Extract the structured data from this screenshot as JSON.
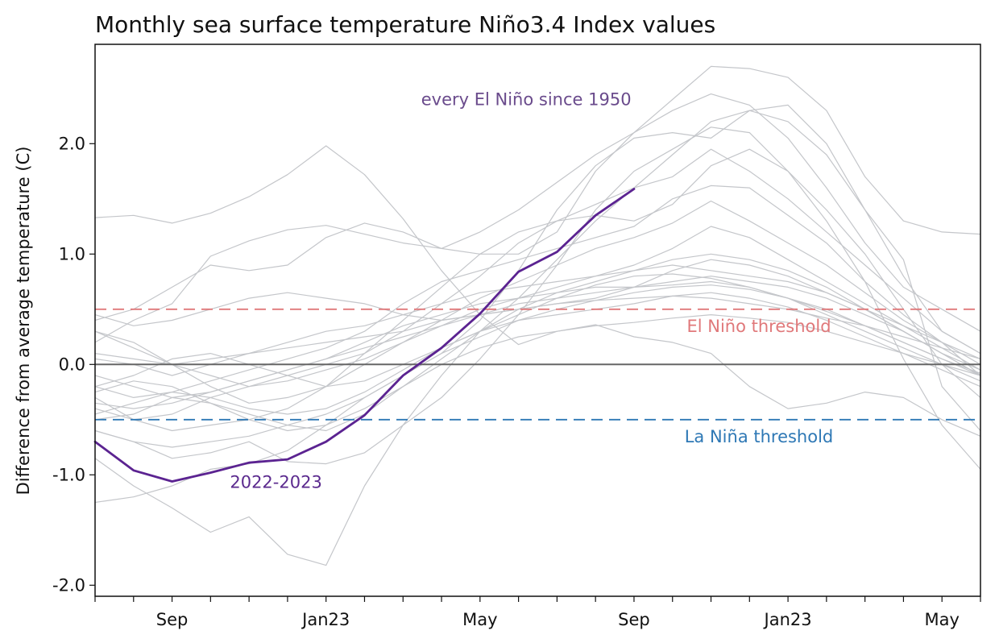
{
  "chart_data": {
    "type": "line",
    "title": "Monthly sea surface temperature Niño3.4 Index values",
    "xlabel": "",
    "ylabel": "Difference from average temperature (C)",
    "xlim": [
      0,
      23
    ],
    "ylim": [
      -2.1,
      2.9
    ],
    "x_ticks": [
      {
        "x": 2,
        "label": "Sep"
      },
      {
        "x": 6,
        "label": "Jan23"
      },
      {
        "x": 10,
        "label": "May"
      },
      {
        "x": 14,
        "label": "Sep"
      },
      {
        "x": 18,
        "label": "Jan23"
      },
      {
        "x": 22,
        "label": "May"
      }
    ],
    "y_ticks": [
      {
        "y": 2.0,
        "label": "2.0"
      },
      {
        "y": 1.0,
        "label": "1.0"
      },
      {
        "y": 0.0,
        "label": "0.0"
      },
      {
        "y": -1.0,
        "label": "-1.0"
      },
      {
        "y": -2.0,
        "label": "-2.0"
      }
    ],
    "grid": false,
    "reference_lines": [
      {
        "y": 0.0,
        "color": "#666666",
        "style": "solid"
      },
      {
        "y": 0.5,
        "color": "#e0787a",
        "style": "dashed",
        "label": "El Niño threshold"
      },
      {
        "y": -0.5,
        "color": "#2e78b5",
        "style": "dashed",
        "label": "La Niña threshold"
      }
    ],
    "annotations": [
      {
        "text": "every El Niño since 1950",
        "color": "#6a4b8c",
        "x": 11.2,
        "y": 2.35
      },
      {
        "text": "2022-2023",
        "color": "#5b2a8e",
        "x": 4.7,
        "y": -1.12
      }
    ],
    "highlight": {
      "color": "#5b2391",
      "label": "2022-2023",
      "x": [
        0,
        1,
        2,
        3,
        4,
        5,
        6,
        7,
        8,
        9,
        10,
        11,
        12,
        13,
        14
      ],
      "y": [
        -0.7,
        -0.96,
        -1.06,
        -0.98,
        -0.89,
        -0.86,
        -0.7,
        -0.46,
        -0.1,
        0.15,
        0.46,
        0.84,
        1.02,
        1.35,
        1.59
      ]
    },
    "background_color": "#c4c6ca",
    "background_series": [
      {
        "y": [
          1.33,
          1.35,
          1.28,
          1.37,
          1.52,
          1.72,
          1.98,
          1.72,
          1.32,
          0.85,
          0.45,
          0.18,
          0.3,
          0.36,
          0.25,
          0.2,
          0.1,
          -0.2,
          -0.4,
          -0.35,
          -0.25,
          -0.3,
          -0.5,
          -0.65
        ]
      },
      {
        "y": [
          0.2,
          0.4,
          0.55,
          0.98,
          1.12,
          1.22,
          1.26,
          1.18,
          1.1,
          1.05,
          1.2,
          1.4,
          1.65,
          1.9,
          2.1,
          2.4,
          2.7,
          2.68,
          2.6,
          2.3,
          1.7,
          1.3,
          1.2,
          1.18
        ]
      },
      {
        "y": [
          0.4,
          0.5,
          0.7,
          0.9,
          0.85,
          0.9,
          1.15,
          1.28,
          1.2,
          1.05,
          1.0,
          1.0,
          1.2,
          1.75,
          2.1,
          2.3,
          2.45,
          2.35,
          2.05,
          1.6,
          1.1,
          0.7,
          0.5,
          0.3
        ]
      },
      {
        "y": [
          -0.85,
          -1.1,
          -1.3,
          -1.52,
          -1.38,
          -1.72,
          -1.82,
          -1.1,
          -0.55,
          -0.1,
          0.3,
          0.6,
          0.95,
          1.3,
          1.6,
          1.9,
          2.2,
          2.3,
          2.2,
          1.9,
          1.4,
          0.8,
          0.3,
          0.1
        ]
      },
      {
        "y": [
          -1.25,
          -1.2,
          -1.1,
          -0.95,
          -0.9,
          -0.78,
          -0.55,
          -0.3,
          -0.1,
          0.1,
          0.4,
          0.85,
          1.4,
          1.8,
          2.05,
          2.1,
          2.05,
          2.3,
          2.35,
          2.0,
          1.4,
          0.95,
          -0.2,
          -0.6
        ]
      },
      {
        "y": [
          -0.6,
          -0.7,
          -0.85,
          -0.8,
          -0.7,
          -0.88,
          -0.9,
          -0.8,
          -0.55,
          -0.3,
          0.05,
          0.45,
          0.9,
          1.4,
          1.75,
          1.95,
          2.15,
          2.1,
          1.75,
          1.3,
          0.75,
          0.05,
          -0.55,
          -0.95
        ]
      },
      {
        "y": [
          0.3,
          0.2,
          0.0,
          -0.2,
          -0.35,
          -0.3,
          -0.2,
          0.1,
          0.4,
          0.7,
          1.0,
          1.2,
          1.3,
          1.35,
          1.3,
          1.45,
          1.8,
          1.95,
          1.75,
          1.4,
          1.0,
          0.5,
          0.0,
          -0.3
        ]
      },
      {
        "y": [
          -0.4,
          -0.5,
          -0.45,
          -0.3,
          -0.2,
          -0.1,
          0.0,
          0.1,
          0.3,
          0.55,
          0.8,
          1.1,
          1.3,
          1.45,
          1.6,
          1.7,
          1.95,
          1.75,
          1.5,
          1.2,
          0.9,
          0.6,
          0.3,
          0.1
        ]
      },
      {
        "y": [
          -0.2,
          -0.3,
          -0.25,
          -0.15,
          -0.05,
          0.05,
          0.15,
          0.3,
          0.55,
          0.75,
          0.85,
          0.95,
          1.05,
          1.15,
          1.25,
          1.5,
          1.62,
          1.6,
          1.35,
          1.1,
          0.75,
          0.45,
          0.2,
          -0.1
        ]
      },
      {
        "y": [
          -0.3,
          -0.5,
          -0.6,
          -0.55,
          -0.5,
          -0.4,
          -0.2,
          0.0,
          0.2,
          0.4,
          0.6,
          0.75,
          0.9,
          1.05,
          1.15,
          1.28,
          1.48,
          1.3,
          1.1,
          0.9,
          0.65,
          0.4,
          0.2,
          0.0
        ]
      },
      {
        "y": [
          0.3,
          0.15,
          0.0,
          -0.1,
          -0.2,
          -0.15,
          -0.05,
          0.05,
          0.2,
          0.35,
          0.5,
          0.6,
          0.7,
          0.8,
          0.9,
          1.05,
          1.25,
          1.15,
          0.95,
          0.75,
          0.55,
          0.35,
          0.15,
          -0.05
        ]
      },
      {
        "y": [
          -0.5,
          -0.45,
          -0.3,
          -0.35,
          -0.45,
          -0.55,
          -0.6,
          -0.45,
          -0.2,
          0.05,
          0.3,
          0.5,
          0.65,
          0.75,
          0.85,
          0.95,
          1.0,
          0.95,
          0.85,
          0.7,
          0.5,
          0.3,
          0.1,
          -0.1
        ]
      },
      {
        "y": [
          0.05,
          0.0,
          -0.1,
          0.0,
          0.1,
          0.2,
          0.3,
          0.35,
          0.45,
          0.55,
          0.65,
          0.7,
          0.75,
          0.8,
          0.85,
          0.9,
          0.85,
          0.8,
          0.75,
          0.65,
          0.5,
          0.35,
          0.2,
          0.05
        ]
      },
      {
        "y": [
          -0.35,
          -0.4,
          -0.35,
          -0.25,
          -0.15,
          -0.05,
          0.05,
          0.15,
          0.25,
          0.35,
          0.45,
          0.55,
          0.6,
          0.65,
          0.7,
          0.75,
          0.8,
          0.75,
          0.7,
          0.6,
          0.45,
          0.3,
          0.1,
          -0.05
        ]
      },
      {
        "y": [
          -0.1,
          -0.2,
          -0.3,
          -0.25,
          -0.15,
          -0.05,
          0.05,
          0.2,
          0.35,
          0.45,
          0.55,
          0.6,
          0.65,
          0.7,
          0.7,
          0.72,
          0.75,
          0.7,
          0.6,
          0.45,
          0.3,
          0.15,
          0.0,
          -0.15
        ]
      },
      {
        "y": [
          -0.6,
          -0.7,
          -0.75,
          -0.7,
          -0.65,
          -0.55,
          -0.45,
          -0.3,
          -0.1,
          0.1,
          0.25,
          0.4,
          0.5,
          0.58,
          0.65,
          0.7,
          0.72,
          0.68,
          0.6,
          0.5,
          0.35,
          0.2,
          0.05,
          -0.1
        ]
      },
      {
        "y": [
          0.1,
          0.05,
          0.0,
          0.05,
          0.1,
          0.15,
          0.2,
          0.25,
          0.3,
          0.4,
          0.45,
          0.5,
          0.55,
          0.58,
          0.6,
          0.62,
          0.6,
          0.55,
          0.5,
          0.42,
          0.35,
          0.25,
          0.15,
          0.05
        ]
      },
      {
        "y": [
          -0.45,
          -0.35,
          -0.25,
          -0.3,
          -0.4,
          -0.45,
          -0.4,
          -0.25,
          -0.05,
          0.15,
          0.3,
          0.4,
          0.45,
          0.5,
          0.55,
          0.62,
          0.65,
          0.6,
          0.52,
          0.4,
          0.25,
          0.1,
          -0.05,
          -0.2
        ]
      },
      {
        "y": [
          -0.25,
          -0.15,
          -0.2,
          -0.35,
          -0.5,
          -0.6,
          -0.55,
          -0.4,
          -0.2,
          0.0,
          0.15,
          0.25,
          0.3,
          0.35,
          0.38,
          0.42,
          0.45,
          0.42,
          0.38,
          0.3,
          0.2,
          0.1,
          0.0,
          -0.1
        ]
      },
      {
        "y": [
          0.45,
          0.35,
          0.4,
          0.5,
          0.6,
          0.65,
          0.6,
          0.55,
          0.45,
          0.4,
          0.45,
          0.5,
          0.55,
          0.6,
          0.7,
          0.85,
          0.95,
          0.9,
          0.8,
          0.65,
          0.5,
          0.3,
          0.1,
          -0.1
        ]
      },
      {
        "y": [
          -0.2,
          -0.1,
          0.05,
          0.1,
          0.0,
          -0.1,
          -0.2,
          -0.15,
          0.0,
          0.15,
          0.3,
          0.45,
          0.6,
          0.72,
          0.8,
          0.82,
          0.78,
          0.7,
          0.6,
          0.48,
          0.35,
          0.2,
          0.05,
          -0.08
        ]
      }
    ]
  }
}
